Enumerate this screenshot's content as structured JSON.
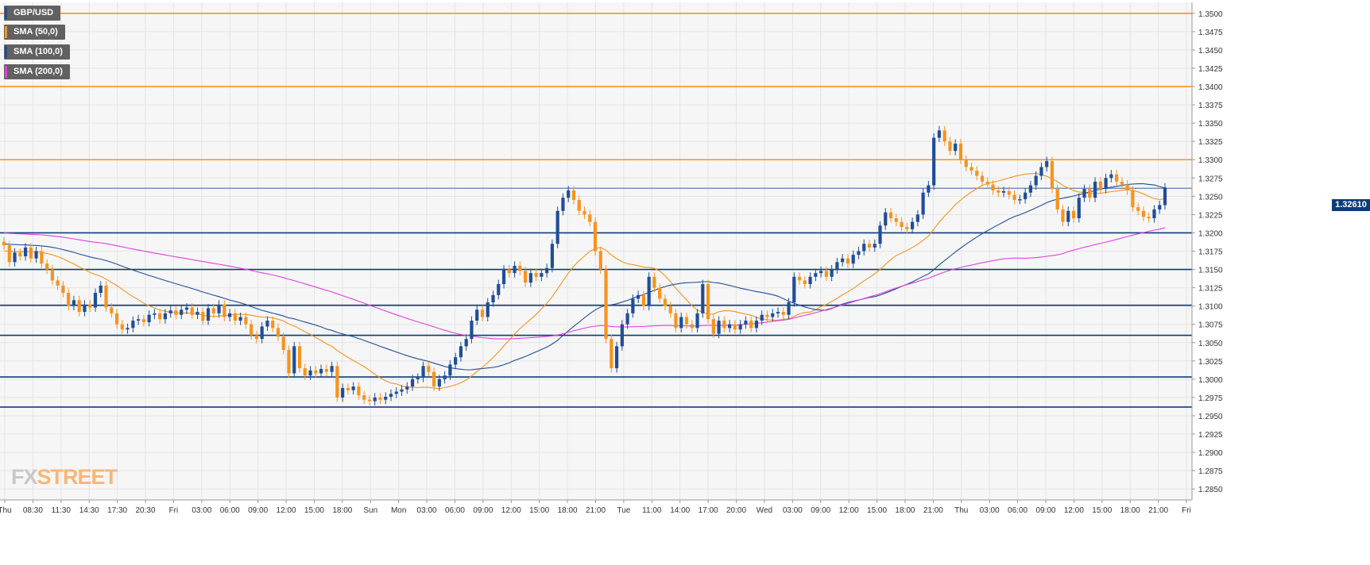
{
  "legend": [
    {
      "label": "GBP/USD",
      "color": "#1f4e96"
    },
    {
      "label": "SMA (50,0)",
      "color": "#f7931e"
    },
    {
      "label": "SMA (100,0)",
      "color": "#1f4e96"
    },
    {
      "label": "SMA (200,0)",
      "color": "#e040e0"
    }
  ],
  "logo": {
    "fx": "FX",
    "street": "STREET"
  },
  "current_price_label": "1.32610",
  "chart_data": {
    "type": "candlestick",
    "title": "",
    "xlabel": "",
    "ylabel": "",
    "ylim": [
      1.2835,
      1.3515
    ],
    "y_ticks": [
      "1.3500",
      "1.3475",
      "1.3450",
      "1.3425",
      "1.3400",
      "1.3375",
      "1.3350",
      "1.3325",
      "1.3300",
      "1.3275",
      "1.3250",
      "1.3225",
      "1.3200",
      "1.3175",
      "1.3150",
      "1.3125",
      "1.3100",
      "1.3075",
      "1.3050",
      "1.3025",
      "1.3000",
      "1.2975",
      "1.2950",
      "1.2925",
      "1.2900",
      "1.2875",
      "1.2850"
    ],
    "x_ticks": [
      "Thu",
      "08:30",
      "11:30",
      "14:30",
      "17:30",
      "20:30",
      "Fri",
      "03:00",
      "06:00",
      "09:00",
      "12:00",
      "15:00",
      "18:00",
      "Sun",
      "Mon",
      "03:00",
      "06:00",
      "09:00",
      "12:00",
      "15:00",
      "18:00",
      "21:00",
      "Tue",
      "11:00",
      "14:00",
      "17:00",
      "20:00",
      "Wed",
      "03:00",
      "09:00",
      "12:00",
      "15:00",
      "18:00",
      "21:00",
      "Thu",
      "03:00",
      "06:00",
      "09:00",
      "12:00",
      "15:00",
      "18:00",
      "21:00",
      "Fri"
    ],
    "grid": true,
    "current_price": 1.3261,
    "resistance_levels": [
      1.35,
      1.34,
      1.33
    ],
    "support_levels": [
      1.32,
      1.315,
      1.3101,
      1.306,
      1.3003,
      1.2962
    ],
    "colors": {
      "up": "#1f4e96",
      "down": "#f7931e",
      "resistance": "#f7931e",
      "support": "#0d3c78"
    },
    "candles": [
      1.3183,
      1.316,
      1.3173,
      1.3168,
      1.318,
      1.3165,
      1.3175,
      1.3158,
      1.315,
      1.3135,
      1.3128,
      1.3118,
      1.31,
      1.3108,
      1.3092,
      1.3102,
      1.3098,
      1.3118,
      1.3128,
      1.3098,
      1.309,
      1.3075,
      1.3068,
      1.307,
      1.308,
      1.3082,
      1.3078,
      1.3088,
      1.309,
      1.3082,
      1.309,
      1.3094,
      1.3088,
      1.3095,
      1.3098,
      1.3088,
      1.3092,
      1.308,
      1.3097,
      1.309,
      1.3102,
      1.3085,
      1.309,
      1.308,
      1.3085,
      1.3075,
      1.306,
      1.3055,
      1.3072,
      1.308,
      1.307,
      1.3058,
      1.304,
      1.3008,
      1.3045,
      1.3015,
      1.3005,
      1.3012,
      1.3008,
      1.3014,
      1.301,
      1.3018,
      1.2975,
      1.2988,
      1.2985,
      1.299,
      1.2978,
      1.2972,
      1.297,
      1.2975,
      1.2972,
      1.2976,
      1.298,
      1.2983,
      1.2986,
      1.299,
      1.3,
      1.3002,
      1.3018,
      1.301,
      1.299,
      1.3,
      1.3005,
      1.302,
      1.303,
      1.3045,
      1.3055,
      1.308,
      1.3095,
      1.3085,
      1.3105,
      1.3115,
      1.313,
      1.315,
      1.3145,
      1.3155,
      1.3148,
      1.3132,
      1.3145,
      1.314,
      1.3145,
      1.3152,
      1.3185,
      1.323,
      1.3248,
      1.3258,
      1.3245,
      1.323,
      1.3225,
      1.3215,
      1.3175,
      1.315,
      1.3055,
      1.3015,
      1.3045,
      1.3075,
      1.309,
      1.311,
      1.3115,
      1.31,
      1.314,
      1.3125,
      1.311,
      1.31,
      1.309,
      1.307,
      1.3085,
      1.3075,
      1.307,
      1.309,
      1.313,
      1.3082,
      1.3062,
      1.308,
      1.307,
      1.3075,
      1.3068,
      1.3075,
      1.308,
      1.307,
      1.308,
      1.3088,
      1.3085,
      1.309,
      1.3092,
      1.3088,
      1.3105,
      1.314,
      1.3135,
      1.313,
      1.314,
      1.3145,
      1.3148,
      1.314,
      1.315,
      1.316,
      1.3165,
      1.3158,
      1.317,
      1.3175,
      1.3185,
      1.318,
      1.3185,
      1.321,
      1.3228,
      1.322,
      1.3215,
      1.3208,
      1.3205,
      1.3215,
      1.3225,
      1.3255,
      1.3265,
      1.333,
      1.334,
      1.3325,
      1.3312,
      1.3322,
      1.33,
      1.329,
      1.3285,
      1.3278,
      1.327,
      1.3266,
      1.3258,
      1.3255,
      1.3257,
      1.3252,
      1.3245,
      1.3246,
      1.3255,
      1.3265,
      1.3278,
      1.329,
      1.3298,
      1.326,
      1.3232,
      1.3215,
      1.323,
      1.322,
      1.3248,
      1.326,
      1.3248,
      1.327,
      1.326,
      1.3275,
      1.328,
      1.327,
      1.3266,
      1.3258,
      1.3235,
      1.323,
      1.3222,
      1.322,
      1.3232,
      1.3238,
      1.3262
    ]
  }
}
